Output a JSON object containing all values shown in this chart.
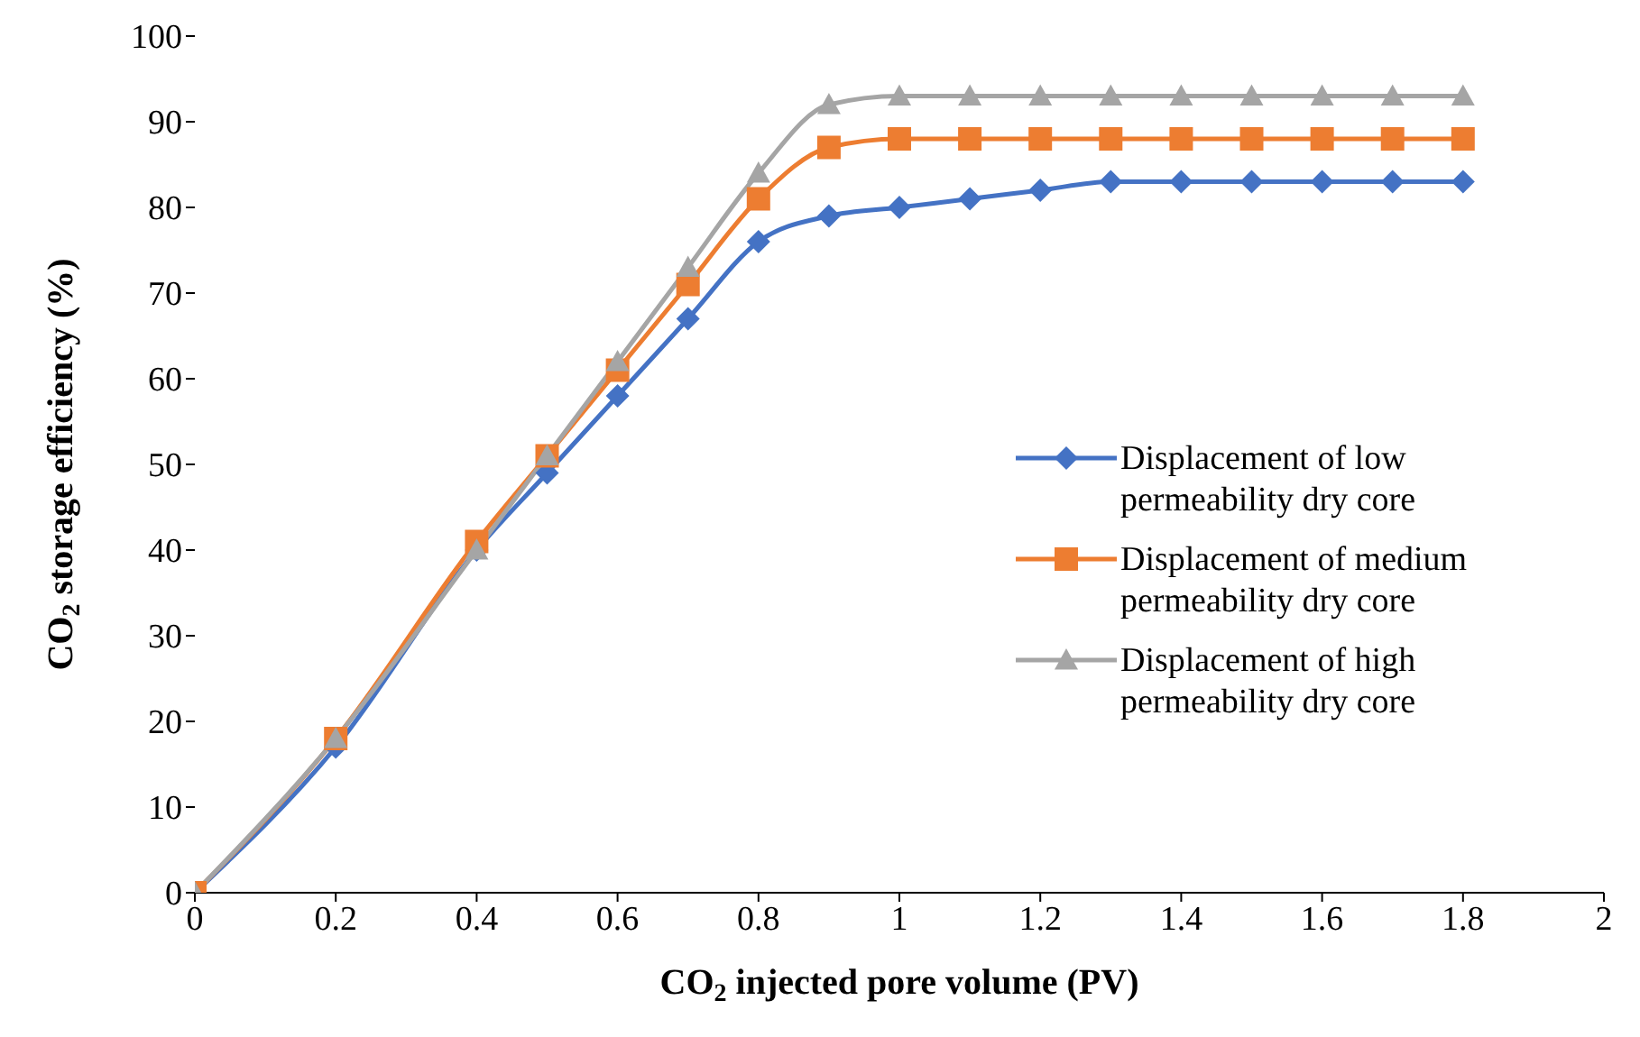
{
  "chart_data": {
    "type": "line",
    "xlabel": "CO$_{2}$ injected pore volume (PV)",
    "ylabel": "CO$_{2}$ storage efficiency (%)",
    "x": [
      0,
      0.2,
      0.4,
      0.5,
      0.6,
      0.7,
      0.8,
      0.9,
      1,
      1.1,
      1.2,
      1.3,
      1.4,
      1.5,
      1.6,
      1.7,
      1.8
    ],
    "series": [
      {
        "name": "Displacement of low permeability dry core",
        "color": "#4472c4",
        "marker": "diamond",
        "values": [
          0,
          17,
          40,
          49,
          58,
          67,
          76,
          79,
          80,
          81,
          82,
          83,
          83,
          83,
          83,
          83,
          83
        ]
      },
      {
        "name": "Displacement of medium permeability dry core",
        "color": "#ed7d31",
        "marker": "square",
        "values": [
          0,
          18,
          41,
          51,
          61,
          71,
          81,
          87,
          88,
          88,
          88,
          88,
          88,
          88,
          88,
          88,
          88
        ]
      },
      {
        "name": "Displacement of high permeability dry core",
        "color": "#a5a5a5",
        "marker": "triangle",
        "values": [
          0,
          18,
          40,
          51,
          62,
          73,
          84,
          92,
          93,
          93,
          93,
          93,
          93,
          93,
          93,
          93,
          93
        ]
      }
    ],
    "xlim": [
      0,
      2
    ],
    "xticks": [
      0,
      0.2,
      0.4,
      0.6,
      0.8,
      1,
      1.2,
      1.4,
      1.6,
      1.8,
      2
    ],
    "ylim": [
      0,
      100
    ],
    "yticks": [
      0,
      10,
      20,
      30,
      40,
      50,
      60,
      70,
      80,
      90,
      100
    ],
    "grid": false,
    "legend": "right",
    "line_style": "solid"
  }
}
